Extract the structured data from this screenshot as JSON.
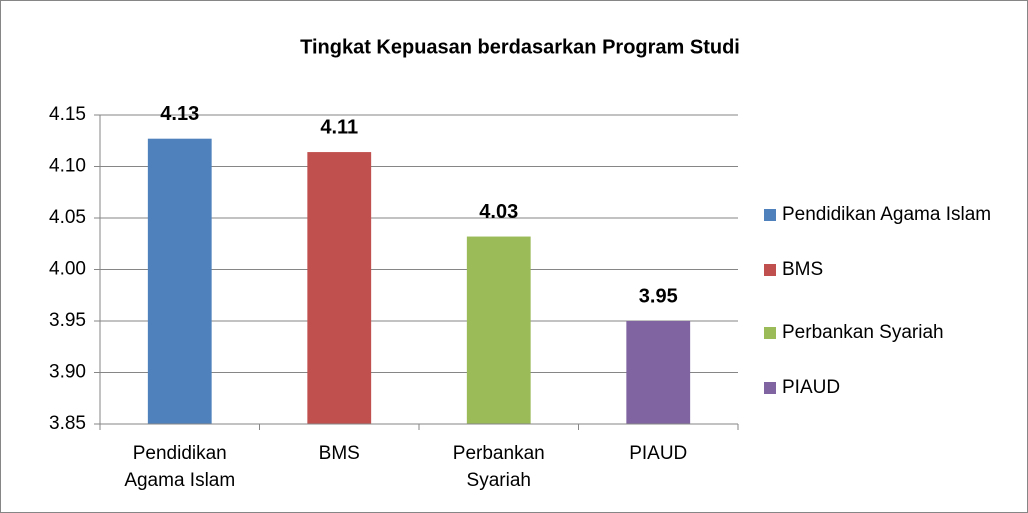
{
  "chart_data": {
    "type": "bar",
    "title": "Tingkat Kepuasan berdasarkan Program Studi",
    "categories": [
      "Pendidikan Agama Islam",
      "BMS",
      "Perbankan Syariah",
      "PIAUD"
    ],
    "values": [
      4.127,
      4.114,
      4.032,
      3.95
    ],
    "value_labels": [
      "4.13",
      "4.11",
      "4.03",
      "3.95"
    ],
    "colors": [
      "#4f81bd",
      "#c0504d",
      "#9bbb59",
      "#8064a2"
    ],
    "ylim": [
      3.85,
      4.15
    ],
    "yticks": [
      3.85,
      {
        "value": 3.9,
        "label": "3.90"
      },
      3.95,
      {
        "value": 4,
        "label": "4.00"
      },
      4.05,
      {
        "value": 4.1,
        "label": "4.10"
      },
      4.15
    ],
    "grid": true,
    "legend": "right"
  }
}
